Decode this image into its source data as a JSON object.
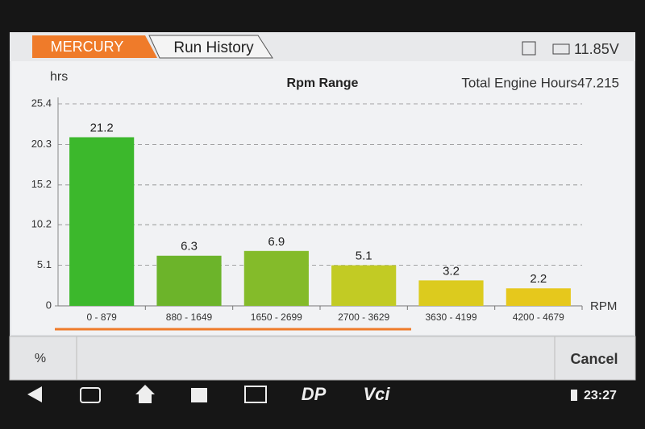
{
  "header": {
    "tabs": [
      "MERCURY",
      "Run History"
    ],
    "voltage": "11.85V"
  },
  "chart_data": {
    "type": "bar",
    "title": "Rpm Range",
    "y_label": "hrs",
    "x_label": "RPM",
    "annotation": "Total Engine Hours47.215",
    "categories": [
      "0 - 879",
      "880 - 1649",
      "1650 - 2699",
      "2700 - 3629",
      "3630 - 4199",
      "4200 - 4679"
    ],
    "values": [
      21.2,
      6.3,
      6.9,
      5.1,
      3.2,
      2.2
    ],
    "colors": [
      "#3cb82c",
      "#6cb42a",
      "#84bb2a",
      "#c2cb24",
      "#dccb1e",
      "#e6c81c"
    ],
    "ylim": [
      0,
      25.4
    ],
    "yticks": [
      0,
      5.1,
      10.2,
      15.2,
      20.3,
      25.4
    ],
    "grid": true
  },
  "footer": {
    "left_button": "%",
    "right_button": "Cancel"
  },
  "nav": {
    "dp": "DP",
    "vci": "Vci",
    "time": "23:27"
  }
}
